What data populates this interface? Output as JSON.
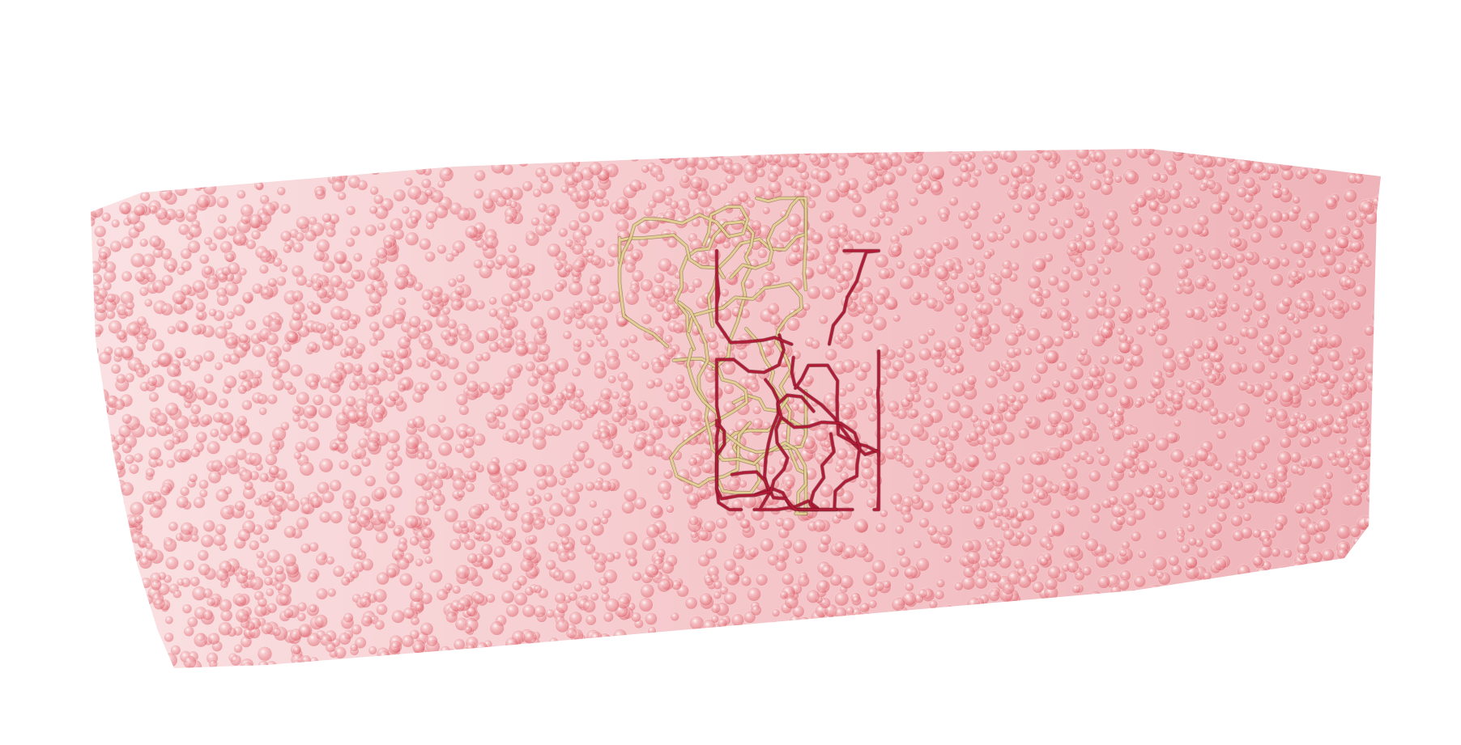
{
  "scene": {
    "subject": "molecular-render",
    "background_color": "#ffffff",
    "water_box": {
      "color": "#e0606a",
      "highlight_color": "#ffffff"
    },
    "protein_chains": [
      {
        "name": "chain-a",
        "color": "#e3cf94",
        "outline_color": "#6e5a2a"
      },
      {
        "name": "chain-b",
        "color": "#b01b35",
        "outline_color": "#5a0a18"
      }
    ]
  }
}
